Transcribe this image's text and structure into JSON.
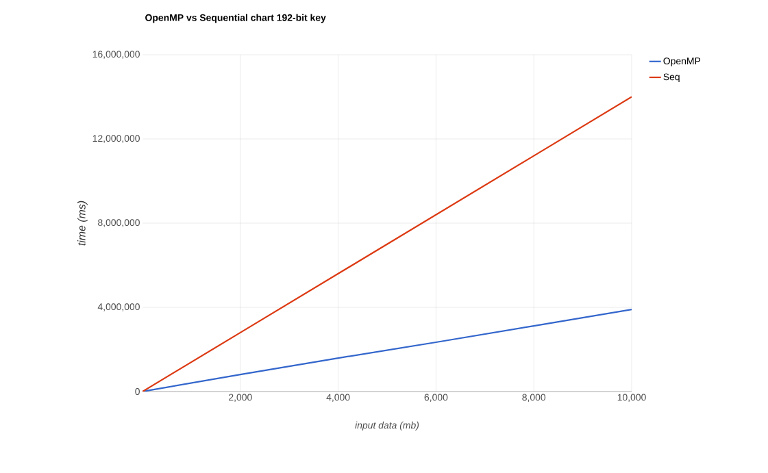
{
  "chart_data": {
    "type": "line",
    "title": "OpenMP vs Sequential chart 192-bit key",
    "xlabel": "input data (mb)",
    "ylabel": "time (ms)",
    "x": [
      0,
      2000,
      4000,
      6000,
      8000,
      10000
    ],
    "series": [
      {
        "name": "OpenMP",
        "color": "#3366cc",
        "values": [
          0,
          810000,
          1590000,
          2340000,
          3120000,
          3900000
        ]
      },
      {
        "name": "Seq",
        "color": "#dc3912",
        "values": [
          0,
          2800000,
          5600000,
          8400000,
          11200000,
          14000000
        ]
      }
    ],
    "xlim": [
      0,
      10000
    ],
    "xticks": [
      {
        "value": 2000,
        "label": "2,000"
      },
      {
        "value": 4000,
        "label": "4,000"
      },
      {
        "value": 6000,
        "label": "6,000"
      },
      {
        "value": 8000,
        "label": "8,000"
      },
      {
        "value": 10000,
        "label": "10,000"
      }
    ],
    "ylim": [
      0,
      16000000
    ],
    "yticks": [
      {
        "value": 0,
        "label": "0"
      },
      {
        "value": 4000000,
        "label": "4,000,000"
      },
      {
        "value": 8000000,
        "label": "8,000,000"
      },
      {
        "value": 12000000,
        "label": "12,000,000"
      },
      {
        "value": 16000000,
        "label": "16,000,000"
      }
    ],
    "grid": true,
    "legend": "top right",
    "marker": "none",
    "line_style": "solid"
  }
}
